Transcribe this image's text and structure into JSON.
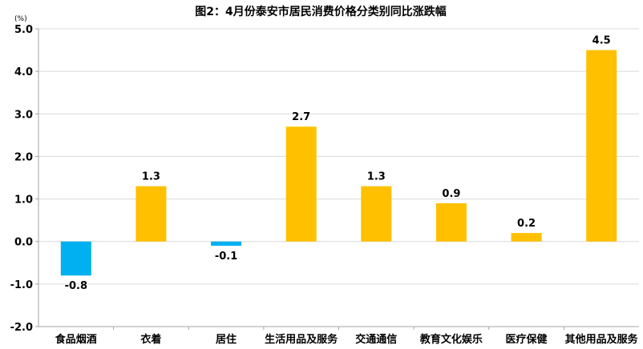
{
  "chart_data": {
    "type": "bar",
    "title": "图2：4月份泰安市居民消费价格分类别同比涨跌幅",
    "unit": "(%)",
    "categories": [
      "食品烟酒",
      "衣着",
      "居住",
      "生活用品及服务",
      "交通通信",
      "教育文化娱乐",
      "医疗保健",
      "其他用品及服务"
    ],
    "values": [
      -0.8,
      1.3,
      -0.1,
      2.7,
      1.3,
      0.9,
      0.2,
      4.5
    ],
    "value_labels": [
      "-0.8",
      "1.3",
      "-0.1",
      "2.7",
      "1.3",
      "0.9",
      "0.2",
      "4.5"
    ],
    "yticks": [
      "5.0",
      "4.0",
      "3.0",
      "2.0",
      "1.0",
      "0.0",
      "-1.0",
      "-2.0"
    ],
    "ylim": [
      -2,
      5
    ],
    "grid": true,
    "colors": {
      "positive": "#FFC000",
      "negative": "#00B0F0",
      "grid": "#D9D9D9",
      "axis": "#A6A6A6"
    }
  }
}
